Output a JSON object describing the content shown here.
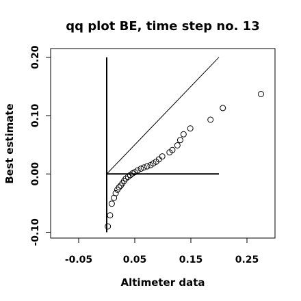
{
  "chart_data": {
    "type": "scatter",
    "title": "qq plot BE, time step no. 13",
    "xlabel": "Altimeter data",
    "ylabel": "Best estimate",
    "xlim": [
      -0.1,
      0.3
    ],
    "ylim": [
      -0.11,
      0.215
    ],
    "x_ticks": [
      -0.05,
      0.05,
      0.15,
      0.25
    ],
    "x_tick_labels": [
      "-0.05",
      "0.05",
      "0.15",
      "0.25"
    ],
    "y_ticks": [
      -0.1,
      0.0,
      0.1,
      0.2
    ],
    "y_tick_labels": [
      "-0.10",
      "0.00",
      "0.10",
      "0.20"
    ],
    "grid": false,
    "legend": "none",
    "reference_lines": [
      {
        "from": [
          0,
          0.2
        ],
        "to": [
          0,
          -0.1
        ]
      },
      {
        "from": [
          0,
          0
        ],
        "to": [
          0.2,
          0
        ]
      },
      {
        "from": [
          0,
          0
        ],
        "to": [
          0.2,
          0.2
        ]
      }
    ],
    "series": [
      {
        "marker": "open-circle",
        "color": "#000000",
        "points": [
          [
            0.002,
            -0.09
          ],
          [
            0.006,
            -0.071
          ],
          [
            0.009,
            -0.051
          ],
          [
            0.013,
            -0.041
          ],
          [
            0.016,
            -0.033
          ],
          [
            0.019,
            -0.027
          ],
          [
            0.022,
            -0.023
          ],
          [
            0.025,
            -0.02
          ],
          [
            0.028,
            -0.016
          ],
          [
            0.031,
            -0.012
          ],
          [
            0.034,
            -0.008
          ],
          [
            0.038,
            -0.005
          ],
          [
            0.042,
            -0.002
          ],
          [
            0.046,
            0.001
          ],
          [
            0.05,
            0.003
          ],
          [
            0.055,
            0.006
          ],
          [
            0.061,
            0.009
          ],
          [
            0.066,
            0.011
          ],
          [
            0.072,
            0.013
          ],
          [
            0.078,
            0.015
          ],
          [
            0.083,
            0.018
          ],
          [
            0.088,
            0.021
          ],
          [
            0.093,
            0.025
          ],
          [
            0.099,
            0.03
          ],
          [
            0.112,
            0.037
          ],
          [
            0.117,
            0.041
          ],
          [
            0.126,
            0.049
          ],
          [
            0.131,
            0.058
          ],
          [
            0.137,
            0.068
          ],
          [
            0.149,
            0.078
          ],
          [
            0.185,
            0.093
          ],
          [
            0.207,
            0.113
          ],
          [
            0.275,
            0.137
          ]
        ]
      }
    ]
  }
}
